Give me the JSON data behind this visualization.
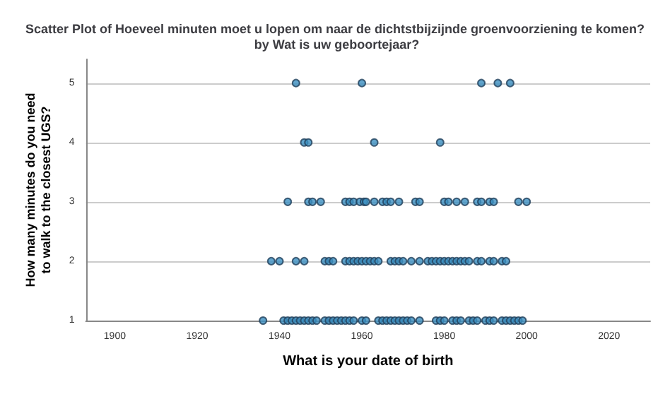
{
  "chart_data": {
    "type": "scatter",
    "title": "Scatter Plot of Hoeveel minuten moet u lopen om naar de dichtstbijzijnde groenvoorziening te komen? by Wat is uw geboortejaar?",
    "xlabel": "What is your date of birth",
    "ylabel": "How many minutes do you need to walk to the closest UGS?",
    "xlim": [
      1893,
      2030
    ],
    "xticks": [
      1900,
      1920,
      1940,
      1960,
      1980,
      2000,
      2020
    ],
    "ylim": [
      1,
      5.4
    ],
    "yticks": [
      1,
      2,
      3,
      4,
      5
    ],
    "grid": "y",
    "marker": "circle",
    "series": [
      {
        "color": "#3b8fc0",
        "x": [
          1944,
          1960,
          1989,
          1993,
          1996,
          1946,
          1947,
          1963,
          1979,
          1942,
          1947,
          1948,
          1950,
          1956,
          1957,
          1958,
          1959.5,
          1960.5,
          1961,
          1963,
          1965,
          1966,
          1967,
          1969,
          1973,
          1974,
          1980,
          1981,
          1983,
          1985,
          1988,
          1989,
          1991,
          1992,
          1998,
          2000,
          1938,
          1940,
          1944,
          1946,
          1951,
          1952,
          1953,
          1956,
          1957,
          1958,
          1959,
          1960,
          1961,
          1962,
          1963,
          1964,
          1967,
          1968,
          1969,
          1970,
          1972,
          1974,
          1976,
          1977,
          1978,
          1979,
          1980,
          1981,
          1982,
          1983,
          1984,
          1985,
          1986,
          1988,
          1989,
          1991,
          1992,
          1994,
          1995,
          1936,
          1941,
          1942,
          1943,
          1944,
          1945,
          1946,
          1947,
          1948,
          1949,
          1951,
          1952,
          1953,
          1954,
          1955,
          1956,
          1957,
          1958,
          1960,
          1961,
          1964,
          1965,
          1966,
          1967,
          1968,
          1969,
          1970,
          1971,
          1972,
          1974,
          1978,
          1979,
          1980,
          1982,
          1983,
          1984,
          1986,
          1987,
          1988,
          1990,
          1991,
          1992,
          1994,
          1995,
          1996,
          1997,
          1998,
          1999
        ],
        "values": [
          5,
          5,
          5,
          5,
          5,
          4,
          4,
          4,
          4,
          3,
          3,
          3,
          3,
          3,
          3,
          3,
          3,
          3,
          3,
          3,
          3,
          3,
          3,
          3,
          3,
          3,
          3,
          3,
          3,
          3,
          3,
          3,
          3,
          3,
          3,
          3,
          2,
          2,
          2,
          2,
          2,
          2,
          2,
          2,
          2,
          2,
          2,
          2,
          2,
          2,
          2,
          2,
          2,
          2,
          2,
          2,
          2,
          2,
          2,
          2,
          2,
          2,
          2,
          2,
          2,
          2,
          2,
          2,
          2,
          2,
          2,
          2,
          2,
          2,
          2,
          1,
          1,
          1,
          1,
          1,
          1,
          1,
          1,
          1,
          1,
          1,
          1,
          1,
          1,
          1,
          1,
          1,
          1,
          1,
          1,
          1,
          1,
          1,
          1,
          1,
          1,
          1,
          1,
          1,
          1,
          1,
          1,
          1,
          1,
          1,
          1,
          1,
          1,
          1,
          1,
          1,
          1,
          1,
          1,
          1,
          1,
          1,
          1
        ]
      }
    ]
  }
}
